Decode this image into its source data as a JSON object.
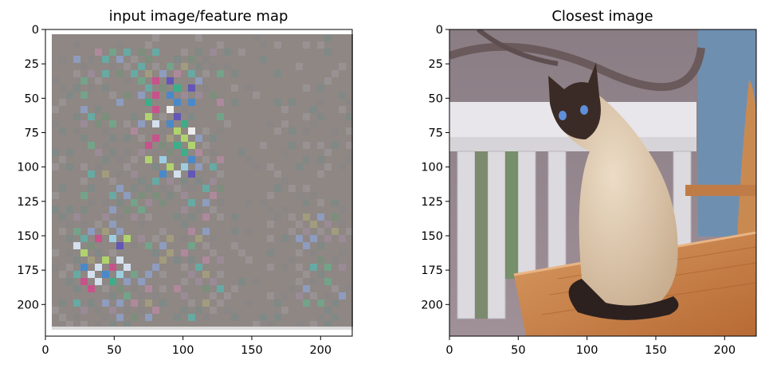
{
  "figure": {
    "panels": [
      {
        "title": "input image/feature map",
        "image_icon": "checkerboard-feature-map-image",
        "x_ticks": [
          "0",
          "50",
          "100",
          "150",
          "200"
        ],
        "y_ticks": [
          "0",
          "25",
          "50",
          "75",
          "100",
          "125",
          "150",
          "175",
          "200"
        ],
        "x_tick_values": [
          0,
          50,
          100,
          150,
          200
        ],
        "y_tick_values": [
          0,
          25,
          50,
          75,
          100,
          125,
          150,
          175,
          200
        ],
        "xlim": [
          0,
          223
        ],
        "ylim": [
          0,
          223
        ]
      },
      {
        "title": "Closest image",
        "image_icon": "siamese-cat-on-table-photo",
        "x_ticks": [
          "0",
          "50",
          "100",
          "150",
          "200"
        ],
        "y_ticks": [
          "0",
          "25",
          "50",
          "75",
          "100",
          "125",
          "150",
          "175",
          "200"
        ],
        "x_tick_values": [
          0,
          50,
          100,
          150,
          200
        ],
        "y_tick_values": [
          0,
          25,
          50,
          75,
          100,
          125,
          150,
          175,
          200
        ],
        "xlim": [
          0,
          223
        ],
        "ylim": [
          0,
          223
        ]
      }
    ]
  }
}
